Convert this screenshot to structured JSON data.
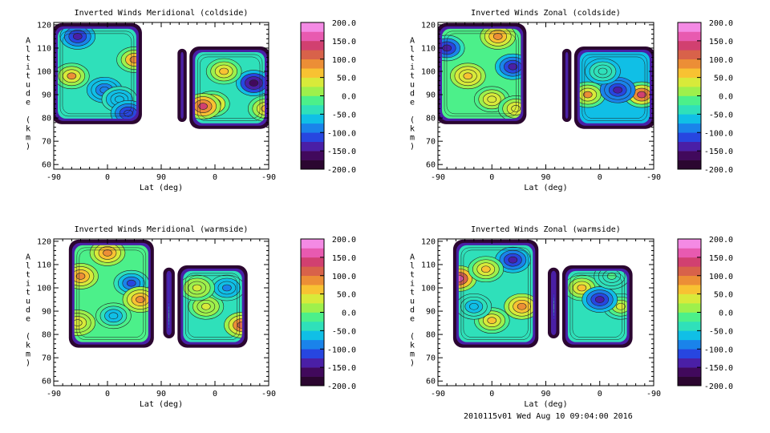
{
  "colorbar": {
    "ticks": [
      "200.0",
      "150.0",
      "100.0",
      "50.0",
      "0.0",
      "-50.0",
      "-100.0",
      "-150.0",
      "-200.0"
    ],
    "range": [
      -200,
      200
    ],
    "colors": [
      "#2b0630",
      "#41095c",
      "#4a1fa6",
      "#2746e0",
      "#1a83ea",
      "#10bfe6",
      "#2fe0ba",
      "#4cf08a",
      "#9ef04c",
      "#d8ea3a",
      "#f8c232",
      "#ec8e36",
      "#d8624a",
      "#d14070",
      "#e85ab0",
      "#f48ae4"
    ]
  },
  "footer": "2010115v01 Wed Aug 10 09:04:00 2016",
  "chart_data": [
    {
      "type": "heatmap",
      "title": "Inverted Winds Meridional (coldside)",
      "xlabel": "Lat (deg)",
      "ylabel": "Altitude (km)",
      "x_ticks": [
        "-90",
        "0",
        "90",
        "0",
        "-90"
      ],
      "y_ticks": [
        "60",
        "70",
        "80",
        "90",
        "100",
        "110",
        "120"
      ],
      "ylim": [
        58,
        121
      ],
      "blobs": [
        {
          "x": [
            -90,
            55
          ],
          "y": [
            78,
            120
          ],
          "value": -45,
          "spots": [
            {
              "x": -60,
              "y": 98,
              "value": 80
            },
            {
              "x": 45,
              "y": 105,
              "value": 90
            },
            {
              "x": -5,
              "y": 92,
              "value": -90
            },
            {
              "x": 20,
              "y": 88,
              "value": -60
            },
            {
              "x": -50,
              "y": 115,
              "value": -130
            },
            {
              "x": 35,
              "y": 82,
              "value": -120
            }
          ]
        },
        {
          "x": [
            120,
            130
          ],
          "y": [
            79,
            109
          ],
          "value": -170,
          "spots": []
        },
        {
          "x": [
            140,
            270
          ],
          "y": [
            76,
            110
          ],
          "value": -40,
          "spots": [
            {
              "x": 175,
              "y": 86,
              "value": 90
            },
            {
              "x": 160,
              "y": 85,
              "value": 140
            },
            {
              "x": 245,
              "y": 95,
              "value": -170
            },
            {
              "x": 195,
              "y": 100,
              "value": 70
            },
            {
              "x": 265,
              "y": 84,
              "value": 70
            }
          ]
        }
      ]
    },
    {
      "type": "heatmap",
      "title": "Inverted Winds Zonal (coldside)",
      "xlabel": "Lat (deg)",
      "ylabel": "Altitude (km)",
      "x_ticks": [
        "-90",
        "0",
        "90",
        "0",
        "-90"
      ],
      "y_ticks": [
        "60",
        "70",
        "80",
        "90",
        "100",
        "110",
        "120"
      ],
      "ylim": [
        58,
        121
      ],
      "blobs": [
        {
          "x": [
            -90,
            55
          ],
          "y": [
            78,
            120
          ],
          "value": -20,
          "spots": [
            {
              "x": -40,
              "y": 98,
              "value": 70
            },
            {
              "x": 35,
              "y": 102,
              "value": -150
            },
            {
              "x": 10,
              "y": 115,
              "value": 80
            },
            {
              "x": -75,
              "y": 110,
              "value": -140
            },
            {
              "x": 0,
              "y": 88,
              "value": 40
            },
            {
              "x": 40,
              "y": 84,
              "value": 40
            }
          ]
        },
        {
          "x": [
            120,
            130
          ],
          "y": [
            79,
            109
          ],
          "value": -170,
          "spots": []
        },
        {
          "x": [
            140,
            270
          ],
          "y": [
            76,
            110
          ],
          "value": -60,
          "spots": [
            {
              "x": 250,
              "y": 90,
              "value": 130
            },
            {
              "x": 160,
              "y": 90,
              "value": 80
            },
            {
              "x": 210,
              "y": 92,
              "value": -130
            },
            {
              "x": 185,
              "y": 100,
              "value": -40
            }
          ]
        }
      ]
    },
    {
      "type": "heatmap",
      "title": "Inverted Winds Meridional (warmside)",
      "xlabel": "Lat (deg)",
      "ylabel": "Altitude (km)",
      "x_ticks": [
        "-90",
        "0",
        "90",
        "0",
        "-90"
      ],
      "y_ticks": [
        "60",
        "70",
        "80",
        "90",
        "100",
        "110",
        "120"
      ],
      "ylim": [
        58,
        121
      ],
      "blobs": [
        {
          "x": [
            -62,
            75
          ],
          "y": [
            75,
            120
          ],
          "value": -10,
          "spots": [
            {
              "x": -45,
              "y": 105,
              "value": 90
            },
            {
              "x": 0,
              "y": 115,
              "value": 80
            },
            {
              "x": 40,
              "y": 102,
              "value": -110
            },
            {
              "x": 55,
              "y": 95,
              "value": 80
            },
            {
              "x": 10,
              "y": 88,
              "value": -70
            },
            {
              "x": -50,
              "y": 85,
              "value": 40
            }
          ]
        },
        {
          "x": [
            96,
            110
          ],
          "y": [
            79,
            108
          ],
          "value": -120,
          "spots": [
            {
              "x": 103,
              "y": 88,
              "value": -10
            }
          ]
        },
        {
          "x": [
            120,
            232
          ],
          "y": [
            75,
            109
          ],
          "value": -30,
          "spots": [
            {
              "x": 225,
              "y": 84,
              "value": 120
            },
            {
              "x": 165,
              "y": 92,
              "value": 40
            },
            {
              "x": 200,
              "y": 100,
              "value": -80
            },
            {
              "x": 150,
              "y": 100,
              "value": 40
            }
          ]
        }
      ]
    },
    {
      "type": "heatmap",
      "title": "Inverted Winds Zonal (warmside)",
      "xlabel": "Lat (deg)",
      "ylabel": "Altitude (km)",
      "x_ticks": [
        "-90",
        "0",
        "90",
        "0",
        "-90"
      ],
      "y_ticks": [
        "60",
        "70",
        "80",
        "90",
        "100",
        "110",
        "120"
      ],
      "ylim": [
        58,
        121
      ],
      "blobs": [
        {
          "x": [
            -62,
            75
          ],
          "y": [
            75,
            120
          ],
          "value": -30,
          "spots": [
            {
              "x": -55,
              "y": 104,
              "value": 150
            },
            {
              "x": 50,
              "y": 92,
              "value": 90
            },
            {
              "x": 35,
              "y": 112,
              "value": -140
            },
            {
              "x": -10,
              "y": 108,
              "value": 70
            },
            {
              "x": 0,
              "y": 86,
              "value": 50
            },
            {
              "x": -30,
              "y": 92,
              "value": -60
            }
          ]
        },
        {
          "x": [
            96,
            110
          ],
          "y": [
            79,
            108
          ],
          "value": -140,
          "spots": [
            {
              "x": 103,
              "y": 92,
              "value": -20
            }
          ]
        },
        {
          "x": [
            120,
            232
          ],
          "y": [
            75,
            109
          ],
          "value": -50,
          "spots": [
            {
              "x": 215,
              "y": 92,
              "value": 40
            },
            {
              "x": 150,
              "y": 100,
              "value": 60
            },
            {
              "x": 180,
              "y": 95,
              "value": -130
            },
            {
              "x": 200,
              "y": 105,
              "value": -20
            }
          ]
        }
      ]
    }
  ]
}
